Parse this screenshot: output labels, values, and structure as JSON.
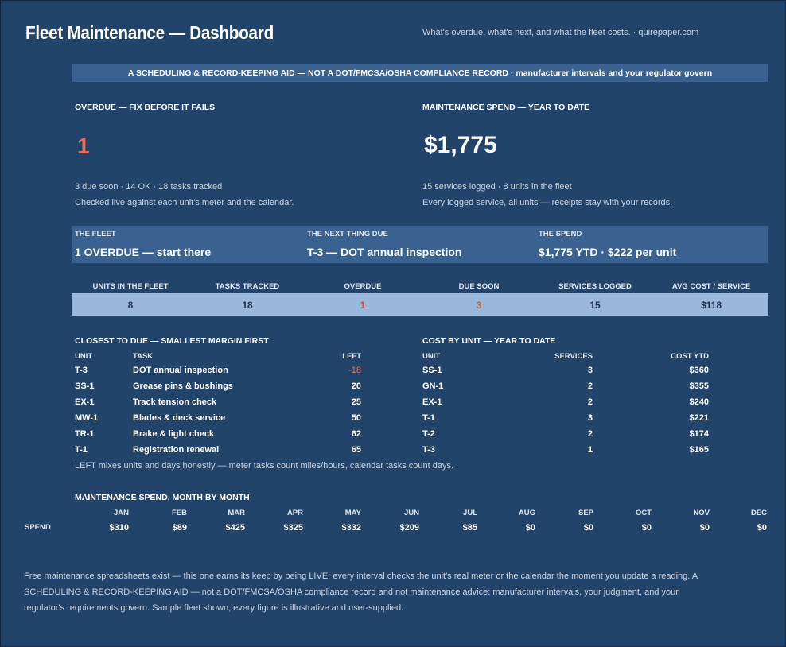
{
  "header": {
    "title": "Fleet Maintenance — Dashboard",
    "subtitle": "What's overdue, what's next, and what the fleet costs.  ·  quirepaper.com"
  },
  "banner": "A SCHEDULING & RECORD-KEEPING AID — NOT A DOT/FMCSA/OSHA COMPLIANCE RECORD  ·  manufacturer intervals and your regulator govern",
  "overdue": {
    "heading": "OVERDUE — FIX BEFORE IT FAILS",
    "value": "1",
    "line1": "3 due soon  ·  14 OK  ·  18 tasks tracked",
    "line2": "Checked live against each unit's meter and the calendar."
  },
  "spend_ytd": {
    "heading": "MAINTENANCE SPEND — YEAR TO DATE",
    "value": "$1,775",
    "line1": "15 services logged  ·  8 units in the fleet",
    "line2": "Every logged service, all units — receipts stay with your records."
  },
  "cards": [
    {
      "label": "THE FLEET",
      "value": "1 OVERDUE — start there"
    },
    {
      "label": "THE NEXT THING DUE",
      "value": "T-3 — DOT annual inspection"
    },
    {
      "label": "THE SPEND",
      "value": "$1,775 YTD · $222 per unit"
    }
  ],
  "stats": [
    {
      "label": "UNITS IN THE FLEET",
      "value": "8"
    },
    {
      "label": "TASKS TRACKED",
      "value": "18"
    },
    {
      "label": "OVERDUE",
      "value": "1"
    },
    {
      "label": "DUE SOON",
      "value": "3"
    },
    {
      "label": "SERVICES LOGGED",
      "value": "15"
    },
    {
      "label": "AVG COST / SERVICE",
      "value": "$118"
    }
  ],
  "closest": {
    "heading": "CLOSEST TO DUE — SMALLEST MARGIN FIRST",
    "columns": [
      "UNIT",
      "TASK",
      "LEFT"
    ],
    "rows": [
      {
        "unit": "T-3",
        "task": "DOT annual inspection",
        "left": "-18"
      },
      {
        "unit": "SS-1",
        "task": "Grease pins & bushings",
        "left": "20"
      },
      {
        "unit": "EX-1",
        "task": "Track tension check",
        "left": "25"
      },
      {
        "unit": "MW-1",
        "task": "Blades & deck service",
        "left": "50"
      },
      {
        "unit": "TR-1",
        "task": "Brake & light check",
        "left": "62"
      },
      {
        "unit": "T-1",
        "task": "Registration renewal",
        "left": "65"
      }
    ],
    "note": "LEFT mixes units and days honestly — meter tasks count miles/hours, calendar tasks count days."
  },
  "cost_by_unit": {
    "heading": "COST BY UNIT — YEAR TO DATE",
    "columns": [
      "UNIT",
      "SERVICES",
      "COST YTD"
    ],
    "rows": [
      {
        "unit": "SS-1",
        "services": "3",
        "cost": "$360"
      },
      {
        "unit": "GN-1",
        "services": "2",
        "cost": "$355"
      },
      {
        "unit": "EX-1",
        "services": "2",
        "cost": "$240"
      },
      {
        "unit": "T-1",
        "services": "3",
        "cost": "$221"
      },
      {
        "unit": "T-2",
        "services": "2",
        "cost": "$174"
      },
      {
        "unit": "T-3",
        "services": "1",
        "cost": "$165"
      }
    ]
  },
  "monthly": {
    "heading": "MAINTENANCE SPEND, MONTH BY MONTH",
    "row_label": "SPEND",
    "months": [
      "JAN",
      "FEB",
      "MAR",
      "APR",
      "MAY",
      "JUN",
      "JUL",
      "AUG",
      "SEP",
      "OCT",
      "NOV",
      "DEC"
    ],
    "values": [
      "$310",
      "$89",
      "$425",
      "$325",
      "$332",
      "$209",
      "$85",
      "$0",
      "$0",
      "$0",
      "$0",
      "$0"
    ]
  },
  "footer": "Free maintenance spreadsheets exist — this one earns its keep by being LIVE: every interval checks the unit's real meter or the calendar the moment you update a reading. A SCHEDULING & RECORD-KEEPING AID — not a DOT/FMCSA/OSHA compliance record and not maintenance advice: manufacturer intervals, your judgment, and your regulator's requirements govern. Sample fleet shown; every figure is illustrative and user-supplied.",
  "colors": {
    "background": "#23446a",
    "band": "#3a6190",
    "stat_band": "#9ab7dc",
    "overdue_red": "#e8715c",
    "due_soon_amber": "#b9702e"
  }
}
